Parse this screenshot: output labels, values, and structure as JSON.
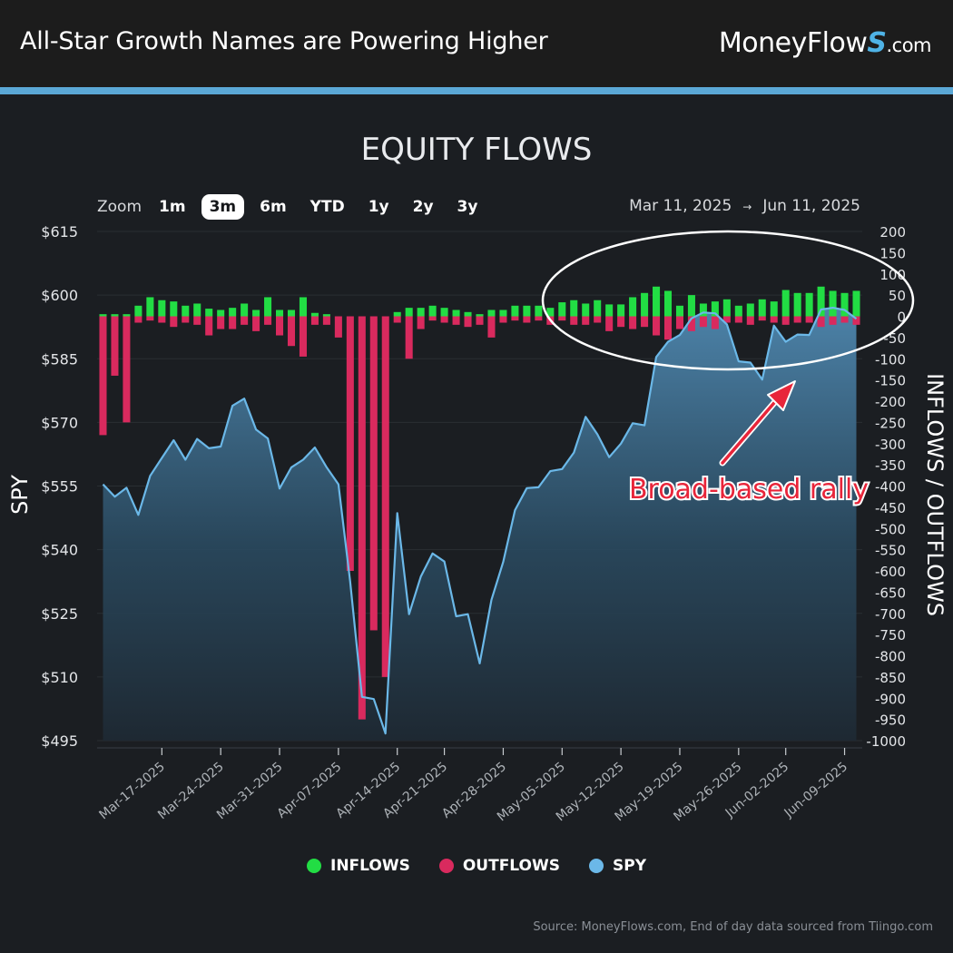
{
  "header": {
    "title": "All-Star Growth Names are Powering Higher",
    "brand_name": "MoneyFlow",
    "brand_mark": "S",
    "brand_tld": ".com"
  },
  "colors": {
    "header_bg": "#1c1c1c",
    "accent_bar": "#5ba8d6",
    "background": "#1b1e22",
    "inflows": "#22dd44",
    "outflows": "#d92a5e",
    "spy": "#6bb8e8",
    "annotation": "#e8253a"
  },
  "zoom": {
    "label": "Zoom",
    "options": [
      "1m",
      "3m",
      "6m",
      "YTD",
      "1y",
      "2y",
      "3y"
    ],
    "selected": "3m"
  },
  "range": {
    "from": "Mar 11, 2025",
    "arrow": "→",
    "to": "Jun 11, 2025"
  },
  "legend": [
    {
      "label": "INFLOWS",
      "color": "#22dd44"
    },
    {
      "label": "OUTFLOWS",
      "color": "#d92a5e"
    },
    {
      "label": "SPY",
      "color": "#6bb8e8"
    }
  ],
  "source": "Source: MoneyFlows.com, End of day data sourced from Tiingo.com",
  "chart_data": {
    "type": "bar",
    "title": "EQUITY FLOWS",
    "ylabel_left": "SPY",
    "ylabel_right": "INFLOWS / OUTFLOWS",
    "y_left_ticks": [
      "$615",
      "$600",
      "$585",
      "$570",
      "$555",
      "$540",
      "$525",
      "$510",
      "$495"
    ],
    "ylim_left": [
      495,
      615
    ],
    "y_right_ticks": [
      "200",
      "150",
      "100",
      "50",
      "0",
      "-50",
      "-100",
      "-150",
      "-200",
      "-250",
      "-300",
      "-350",
      "-400",
      "-450",
      "-500",
      "-550",
      "-600",
      "-650",
      "-700",
      "-750",
      "-800",
      "-850",
      "-900",
      "-950",
      "-1000"
    ],
    "ylim_right": [
      -1000,
      200
    ],
    "x_tick_labels": [
      "Mar-17-2025",
      "Mar-24-2025",
      "Mar-31-2025",
      "Apr-07-2025",
      "Apr-14-2025",
      "Apr-21-2025",
      "Apr-28-2025",
      "May-05-2025",
      "May-12-2025",
      "May-19-2025",
      "May-26-2025",
      "Jun-02-2025",
      "Jun-09-2025"
    ],
    "x_tick_positions": [
      5,
      10,
      15,
      20,
      25,
      29,
      34,
      39,
      44,
      49,
      54,
      58,
      63
    ],
    "days": 65,
    "grid": true,
    "legend_position": "bottom-center",
    "annotation": {
      "text": "Broad-based rally",
      "target": "late-May to Jun-11 inflow cluster, circled"
    },
    "series": [
      {
        "name": "SPY",
        "values": [
          555.4,
          552.5,
          554.6,
          548.2,
          557.4,
          561.6,
          565.8,
          561.2,
          566.1,
          563.9,
          564.3,
          573.9,
          575.6,
          568.3,
          566.2,
          554.4,
          559.4,
          561.2,
          564.1,
          559.4,
          555.4,
          532.5,
          505.3,
          504.8,
          496.7,
          548.6,
          524.8,
          533.7,
          539.1,
          537.2,
          524.3,
          524.8,
          513.2,
          528.2,
          537.1,
          549.3,
          554.5,
          554.7,
          558.5,
          559.0,
          562.9,
          571.3,
          567.2,
          561.8,
          565.0,
          569.8,
          569.3,
          585.4,
          589.0,
          590.6,
          594.5,
          595.9,
          595.7,
          593.1,
          584.4,
          584.1,
          580.1,
          592.8,
          589.0,
          590.7,
          590.6,
          596.6,
          597.0,
          596.5,
          594.4
        ]
      },
      {
        "name": "INFLOWS",
        "values": [
          5,
          5,
          5,
          25,
          45,
          38,
          35,
          25,
          30,
          18,
          15,
          20,
          30,
          15,
          45,
          15,
          15,
          45,
          8,
          5,
          0,
          0,
          0,
          0,
          0,
          10,
          20,
          20,
          25,
          20,
          15,
          10,
          5,
          15,
          15,
          25,
          25,
          25,
          20,
          33,
          38,
          30,
          38,
          28,
          28,
          45,
          55,
          70,
          60,
          25,
          50,
          30,
          35,
          40,
          25,
          30,
          40,
          35,
          62,
          55,
          55,
          70,
          60,
          55,
          60
        ]
      },
      {
        "name": "OUTFLOWS",
        "values": [
          -280,
          -140,
          -250,
          -15,
          -10,
          -15,
          -25,
          -15,
          -20,
          -45,
          -30,
          -30,
          -20,
          -35,
          -20,
          -45,
          -70,
          -95,
          -20,
          -20,
          -50,
          -600,
          -950,
          -740,
          -850,
          -15,
          -100,
          -30,
          -10,
          -15,
          -20,
          -25,
          -20,
          -50,
          -15,
          -10,
          -15,
          -10,
          -20,
          -10,
          -20,
          -20,
          -15,
          -35,
          -25,
          -30,
          -25,
          -45,
          -55,
          -30,
          -35,
          -25,
          -30,
          -15,
          -15,
          -20,
          -10,
          -15,
          -20,
          -15,
          -15,
          -25,
          -20,
          -15,
          -20
        ]
      }
    ]
  }
}
